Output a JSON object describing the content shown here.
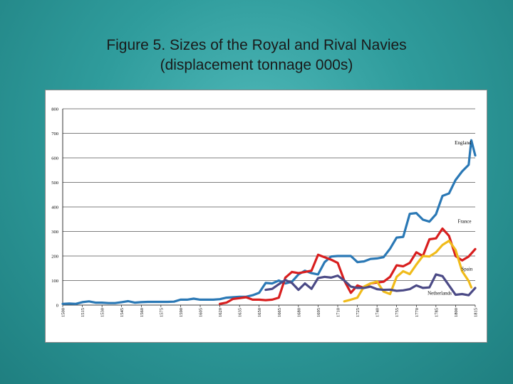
{
  "slide": {
    "title_line1": "Figure 5.  Sizes of the Royal and Rival Navies",
    "title_line2": "(displacement tonnage 000s)"
  },
  "chart_data": {
    "type": "line",
    "title": "Figure 5.  Sizes of the Royal and Rival Navies (displacement tonnage 000s)",
    "xlabel": "",
    "ylabel": "",
    "xlim": [
      1500,
      1815
    ],
    "ylim": [
      0,
      800
    ],
    "grid": "horizontal",
    "y_ticks": [
      0,
      100,
      200,
      300,
      400,
      500,
      600,
      700,
      800
    ],
    "x_ticks": [
      "1500",
      "1515",
      "1530",
      "1545",
      "1560",
      "1575",
      "1590",
      "1605",
      "1620",
      "1635",
      "1650",
      "1665",
      "1680",
      "1695",
      "1710",
      "1725",
      "1740",
      "1755",
      "1770",
      "1785",
      "1800",
      "1815"
    ],
    "series": [
      {
        "name": "England",
        "color": "#2a78b5",
        "label_at": [
          1812,
          655
        ],
        "points": [
          [
            1500,
            5
          ],
          [
            1505,
            6
          ],
          [
            1510,
            5
          ],
          [
            1515,
            12
          ],
          [
            1520,
            15
          ],
          [
            1525,
            10
          ],
          [
            1530,
            10
          ],
          [
            1535,
            8
          ],
          [
            1540,
            8
          ],
          [
            1545,
            12
          ],
          [
            1550,
            16
          ],
          [
            1555,
            10
          ],
          [
            1560,
            12
          ],
          [
            1565,
            13
          ],
          [
            1570,
            13
          ],
          [
            1575,
            13
          ],
          [
            1580,
            13
          ],
          [
            1585,
            14
          ],
          [
            1590,
            22
          ],
          [
            1595,
            22
          ],
          [
            1600,
            26
          ],
          [
            1605,
            22
          ],
          [
            1610,
            22
          ],
          [
            1615,
            22
          ],
          [
            1620,
            24
          ],
          [
            1625,
            30
          ],
          [
            1630,
            32
          ],
          [
            1635,
            34
          ],
          [
            1640,
            34
          ],
          [
            1645,
            40
          ],
          [
            1650,
            50
          ],
          [
            1655,
            90
          ],
          [
            1660,
            88
          ],
          [
            1665,
            100
          ],
          [
            1670,
            88
          ],
          [
            1675,
            95
          ],
          [
            1680,
            125
          ],
          [
            1685,
            140
          ],
          [
            1690,
            130
          ],
          [
            1695,
            125
          ],
          [
            1700,
            175
          ],
          [
            1705,
            198
          ],
          [
            1710,
            200
          ],
          [
            1715,
            200
          ],
          [
            1720,
            200
          ],
          [
            1725,
            175
          ],
          [
            1730,
            178
          ],
          [
            1735,
            188
          ],
          [
            1740,
            190
          ],
          [
            1745,
            195
          ],
          [
            1750,
            230
          ],
          [
            1755,
            275
          ],
          [
            1760,
            278
          ],
          [
            1765,
            372
          ],
          [
            1770,
            375
          ],
          [
            1775,
            348
          ],
          [
            1780,
            340
          ],
          [
            1785,
            370
          ],
          [
            1790,
            445
          ],
          [
            1795,
            455
          ],
          [
            1800,
            510
          ],
          [
            1805,
            545
          ],
          [
            1810,
            572
          ],
          [
            1812,
            672
          ],
          [
            1815,
            610
          ]
        ]
      },
      {
        "name": "France",
        "color": "#d81e1e",
        "label_at": [
          1812,
          335
        ],
        "points": [
          [
            1620,
            5
          ],
          [
            1625,
            10
          ],
          [
            1630,
            25
          ],
          [
            1635,
            28
          ],
          [
            1640,
            32
          ],
          [
            1645,
            22
          ],
          [
            1650,
            22
          ],
          [
            1655,
            20
          ],
          [
            1660,
            22
          ],
          [
            1665,
            30
          ],
          [
            1670,
            112
          ],
          [
            1675,
            135
          ],
          [
            1680,
            130
          ],
          [
            1685,
            135
          ],
          [
            1690,
            140
          ],
          [
            1695,
            205
          ],
          [
            1700,
            195
          ],
          [
            1705,
            185
          ],
          [
            1710,
            172
          ],
          [
            1715,
            100
          ],
          [
            1720,
            50
          ],
          [
            1725,
            80
          ],
          [
            1730,
            70
          ],
          [
            1735,
            88
          ],
          [
            1740,
            92
          ],
          [
            1745,
            95
          ],
          [
            1750,
            115
          ],
          [
            1755,
            162
          ],
          [
            1760,
            158
          ],
          [
            1765,
            172
          ],
          [
            1770,
            215
          ],
          [
            1775,
            200
          ],
          [
            1780,
            268
          ],
          [
            1785,
            272
          ],
          [
            1790,
            312
          ],
          [
            1795,
            282
          ],
          [
            1800,
            200
          ],
          [
            1805,
            182
          ],
          [
            1810,
            198
          ],
          [
            1815,
            228
          ]
        ]
      },
      {
        "name": "Spain",
        "color": "#f0bb1a",
        "label_at": [
          1813,
          140
        ],
        "points": [
          [
            1715,
            15
          ],
          [
            1720,
            22
          ],
          [
            1725,
            30
          ],
          [
            1730,
            75
          ],
          [
            1735,
            88
          ],
          [
            1740,
            96
          ],
          [
            1745,
            55
          ],
          [
            1750,
            45
          ],
          [
            1755,
            115
          ],
          [
            1760,
            138
          ],
          [
            1765,
            126
          ],
          [
            1770,
            165
          ],
          [
            1775,
            200
          ],
          [
            1780,
            198
          ],
          [
            1785,
            215
          ],
          [
            1790,
            245
          ],
          [
            1795,
            262
          ],
          [
            1800,
            225
          ],
          [
            1805,
            138
          ],
          [
            1810,
            98
          ],
          [
            1812,
            72
          ]
        ]
      },
      {
        "name": "Netherlands",
        "color": "#4b4a86",
        "label_at": [
          1797,
          42
        ],
        "points": [
          [
            1655,
            62
          ],
          [
            1660,
            66
          ],
          [
            1665,
            85
          ],
          [
            1670,
            102
          ],
          [
            1675,
            90
          ],
          [
            1680,
            62
          ],
          [
            1685,
            88
          ],
          [
            1690,
            66
          ],
          [
            1695,
            110
          ],
          [
            1700,
            115
          ],
          [
            1705,
            112
          ],
          [
            1710,
            120
          ],
          [
            1715,
            100
          ],
          [
            1720,
            75
          ],
          [
            1725,
            70
          ],
          [
            1730,
            70
          ],
          [
            1735,
            75
          ],
          [
            1740,
            65
          ],
          [
            1745,
            62
          ],
          [
            1750,
            63
          ],
          [
            1755,
            58
          ],
          [
            1760,
            60
          ],
          [
            1765,
            65
          ],
          [
            1770,
            80
          ],
          [
            1775,
            70
          ],
          [
            1780,
            72
          ],
          [
            1785,
            125
          ],
          [
            1790,
            118
          ],
          [
            1795,
            80
          ],
          [
            1800,
            42
          ],
          [
            1805,
            45
          ],
          [
            1810,
            40
          ],
          [
            1815,
            70
          ]
        ]
      }
    ]
  }
}
